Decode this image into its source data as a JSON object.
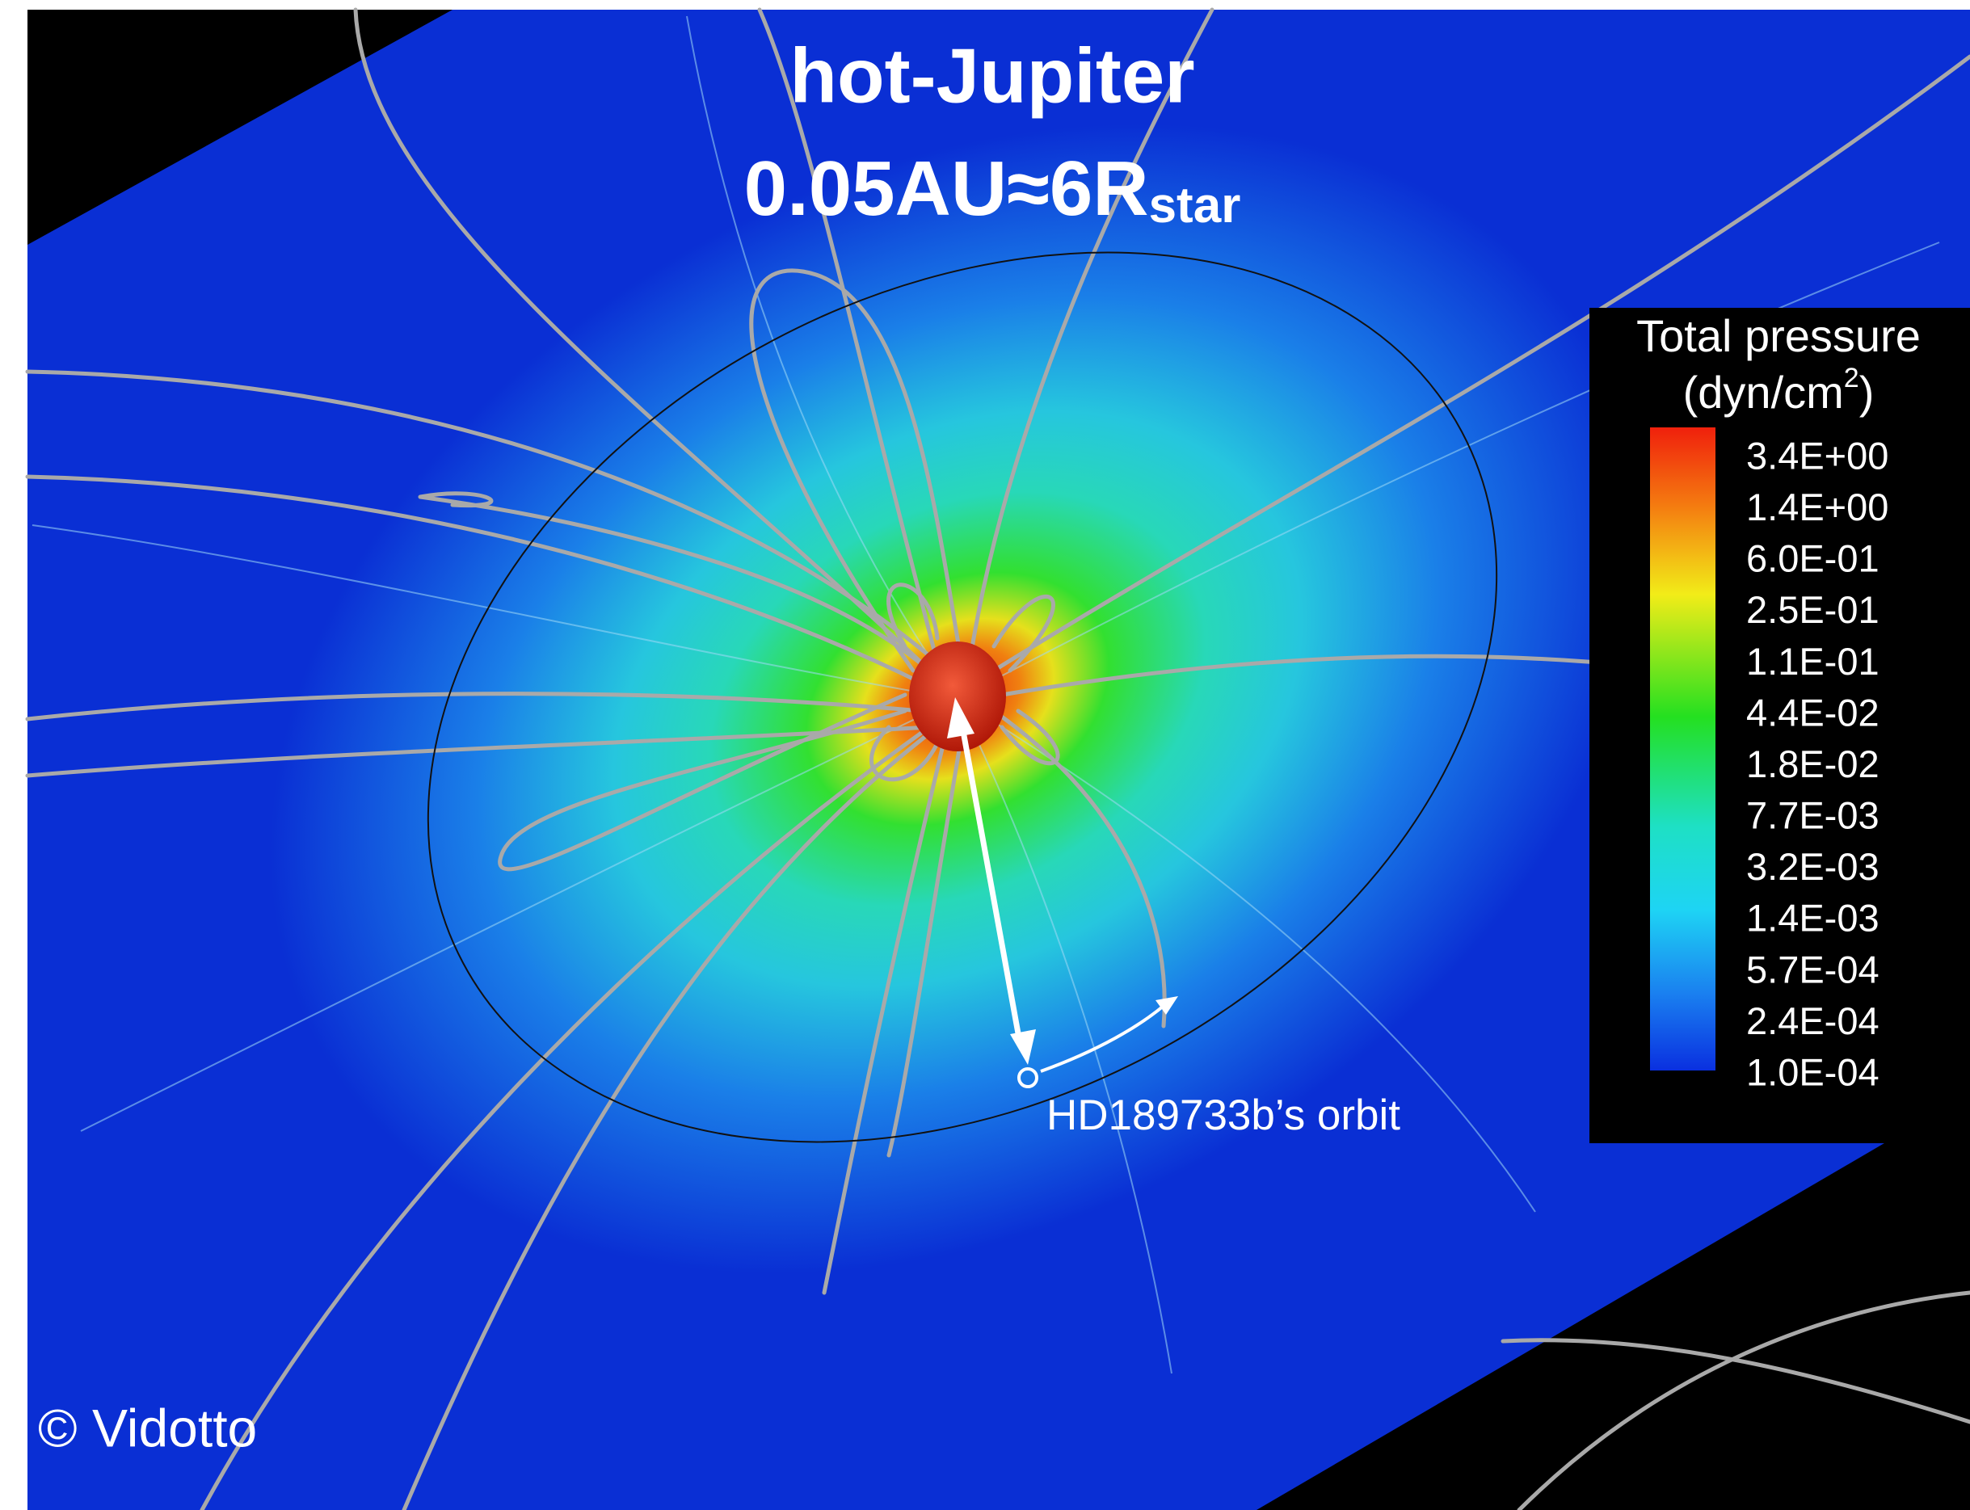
{
  "title": {
    "line1": "hot-Jupiter",
    "line2": "0.05AU≈6R",
    "line2_subscript": "star"
  },
  "colorbar": {
    "title": "Total pressure",
    "unit_open": "(dyn/cm",
    "unit_superscript": "2",
    "unit_close": ")",
    "labels": [
      "3.4E+00",
      "1.4E+00",
      "6.0E-01",
      "2.5E-01",
      "1.1E-01",
      "4.4E-02",
      "1.8E-02",
      "7.7E-03",
      "3.2E-03",
      "1.4E-03",
      "5.7E-04",
      "2.4E-04",
      "1.0E-04"
    ]
  },
  "annotation": "HD189733b’s orbit",
  "credit": "© Vidotto"
}
